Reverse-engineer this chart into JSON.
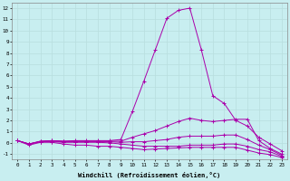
{
  "xlabel": "Windchill (Refroidissement éolien,°C)",
  "background_color": "#c8eef0",
  "line_color": "#aa00aa",
  "grid_color": "#b8dede",
  "xmin": -0.5,
  "xmax": 23.5,
  "ymin": -1.5,
  "ymax": 12.5,
  "yticks": [
    -1,
    0,
    1,
    2,
    3,
    4,
    5,
    6,
    7,
    8,
    9,
    10,
    11,
    12
  ],
  "xticks": [
    0,
    1,
    2,
    3,
    4,
    5,
    6,
    7,
    8,
    9,
    10,
    11,
    12,
    13,
    14,
    15,
    16,
    17,
    18,
    19,
    20,
    21,
    22,
    23
  ],
  "series": [
    [
      0.2,
      -0.1,
      0.15,
      0.2,
      0.15,
      0.2,
      0.2,
      0.2,
      0.2,
      0.3,
      2.8,
      5.5,
      8.3,
      11.1,
      11.8,
      12.0,
      8.3,
      4.2,
      3.5,
      2.0,
      1.5,
      0.5,
      -0.1,
      -0.7
    ],
    [
      0.2,
      -0.1,
      0.15,
      0.2,
      0.15,
      0.15,
      0.15,
      0.15,
      0.15,
      0.15,
      0.5,
      0.8,
      1.1,
      1.5,
      1.9,
      2.2,
      2.0,
      1.9,
      2.0,
      2.1,
      2.1,
      0.2,
      -0.5,
      -1.0
    ],
    [
      0.2,
      -0.1,
      0.1,
      0.15,
      0.1,
      0.1,
      0.1,
      0.1,
      0.1,
      0.05,
      0.1,
      0.1,
      0.2,
      0.3,
      0.5,
      0.6,
      0.6,
      0.6,
      0.7,
      0.7,
      0.3,
      -0.2,
      -0.6,
      -1.1
    ],
    [
      0.2,
      -0.1,
      0.1,
      0.1,
      0.05,
      0.05,
      0.05,
      0.05,
      0.0,
      -0.1,
      -0.2,
      -0.3,
      -0.3,
      -0.3,
      -0.3,
      -0.2,
      -0.2,
      -0.2,
      -0.1,
      -0.1,
      -0.3,
      -0.6,
      -0.8,
      -1.2
    ],
    [
      0.2,
      -0.2,
      0.05,
      0.05,
      -0.1,
      -0.2,
      -0.2,
      -0.3,
      -0.3,
      -0.4,
      -0.5,
      -0.6,
      -0.55,
      -0.5,
      -0.45,
      -0.4,
      -0.4,
      -0.4,
      -0.4,
      -0.4,
      -0.65,
      -0.9,
      -1.05,
      -1.3
    ]
  ]
}
